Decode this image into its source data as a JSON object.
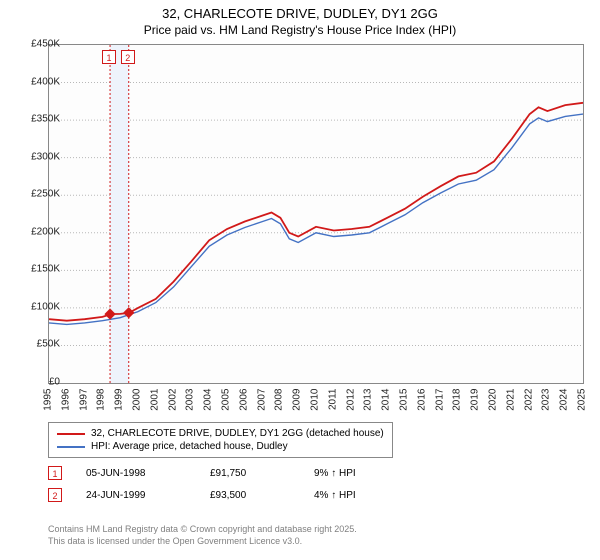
{
  "title": "32, CHARLECOTE DRIVE, DUDLEY, DY1 2GG",
  "subtitle": "Price paid vs. HM Land Registry's House Price Index (HPI)",
  "chart": {
    "type": "line",
    "x_min": 1995,
    "x_max": 2025,
    "y_min": 0,
    "y_max": 450000,
    "y_step": 50000,
    "y_prefix": "£",
    "y_suffix": "K",
    "y_divisor": 1000,
    "background": "#fdfdfd",
    "grid_color": "#b8b8b8",
    "axis_color": "#888888",
    "series": [
      {
        "name": "32, CHARLECOTE DRIVE, DUDLEY, DY1 2GG (detached house)",
        "color": "#d11919",
        "width": 1.8,
        "points": [
          [
            1995,
            85000
          ],
          [
            1996,
            83000
          ],
          [
            1997,
            85000
          ],
          [
            1998,
            88000
          ],
          [
            1998.5,
            91750
          ],
          [
            1999,
            92000
          ],
          [
            1999.5,
            93500
          ],
          [
            2000,
            100000
          ],
          [
            2001,
            112000
          ],
          [
            2002,
            135000
          ],
          [
            2003,
            162000
          ],
          [
            2004,
            190000
          ],
          [
            2005,
            205000
          ],
          [
            2006,
            215000
          ],
          [
            2007,
            223000
          ],
          [
            2007.5,
            227000
          ],
          [
            2008,
            220000
          ],
          [
            2008.5,
            200000
          ],
          [
            2009,
            195000
          ],
          [
            2010,
            208000
          ],
          [
            2011,
            203000
          ],
          [
            2012,
            205000
          ],
          [
            2013,
            208000
          ],
          [
            2014,
            220000
          ],
          [
            2015,
            232000
          ],
          [
            2016,
            248000
          ],
          [
            2017,
            262000
          ],
          [
            2018,
            275000
          ],
          [
            2019,
            280000
          ],
          [
            2020,
            295000
          ],
          [
            2021,
            325000
          ],
          [
            2022,
            358000
          ],
          [
            2022.5,
            367000
          ],
          [
            2023,
            362000
          ],
          [
            2024,
            370000
          ],
          [
            2025,
            373000
          ]
        ]
      },
      {
        "name": "HPI: Average price, detached house, Dudley",
        "color": "#4472c4",
        "width": 1.4,
        "points": [
          [
            1995,
            80000
          ],
          [
            1996,
            78000
          ],
          [
            1997,
            80000
          ],
          [
            1998,
            83000
          ],
          [
            1999,
            87000
          ],
          [
            2000,
            95000
          ],
          [
            2001,
            107000
          ],
          [
            2002,
            128000
          ],
          [
            2003,
            155000
          ],
          [
            2004,
            182000
          ],
          [
            2005,
            197000
          ],
          [
            2006,
            207000
          ],
          [
            2007,
            215000
          ],
          [
            2007.5,
            219000
          ],
          [
            2008,
            212000
          ],
          [
            2008.5,
            192000
          ],
          [
            2009,
            187000
          ],
          [
            2010,
            200000
          ],
          [
            2011,
            195000
          ],
          [
            2012,
            197000
          ],
          [
            2013,
            200000
          ],
          [
            2014,
            212000
          ],
          [
            2015,
            224000
          ],
          [
            2016,
            240000
          ],
          [
            2017,
            253000
          ],
          [
            2018,
            265000
          ],
          [
            2019,
            270000
          ],
          [
            2020,
            284000
          ],
          [
            2021,
            313000
          ],
          [
            2022,
            345000
          ],
          [
            2022.5,
            353000
          ],
          [
            2023,
            348000
          ],
          [
            2024,
            355000
          ],
          [
            2025,
            358000
          ]
        ]
      }
    ],
    "sale_markers": [
      {
        "num": "1",
        "x": 1998.43,
        "y": 91750
      },
      {
        "num": "2",
        "x": 1999.48,
        "y": 93500
      }
    ],
    "sale_vlines": [
      1998.43,
      1999.48
    ],
    "sale_band": {
      "from": 1998.43,
      "to": 1999.48,
      "fill": "#eef3fb"
    }
  },
  "legend": {
    "items": [
      {
        "color": "#d11919",
        "label": "32, CHARLECOTE DRIVE, DUDLEY, DY1 2GG (detached house)"
      },
      {
        "color": "#4472c4",
        "label": "HPI: Average price, detached house, Dudley"
      }
    ]
  },
  "sales_table": [
    {
      "num": "1",
      "date": "05-JUN-1998",
      "price": "£91,750",
      "delta": "9% ↑ HPI"
    },
    {
      "num": "2",
      "date": "24-JUN-1999",
      "price": "£93,500",
      "delta": "4% ↑ HPI"
    }
  ],
  "footer_line1": "Contains HM Land Registry data © Crown copyright and database right 2025.",
  "footer_line2": "This data is licensed under the Open Government Licence v3.0."
}
